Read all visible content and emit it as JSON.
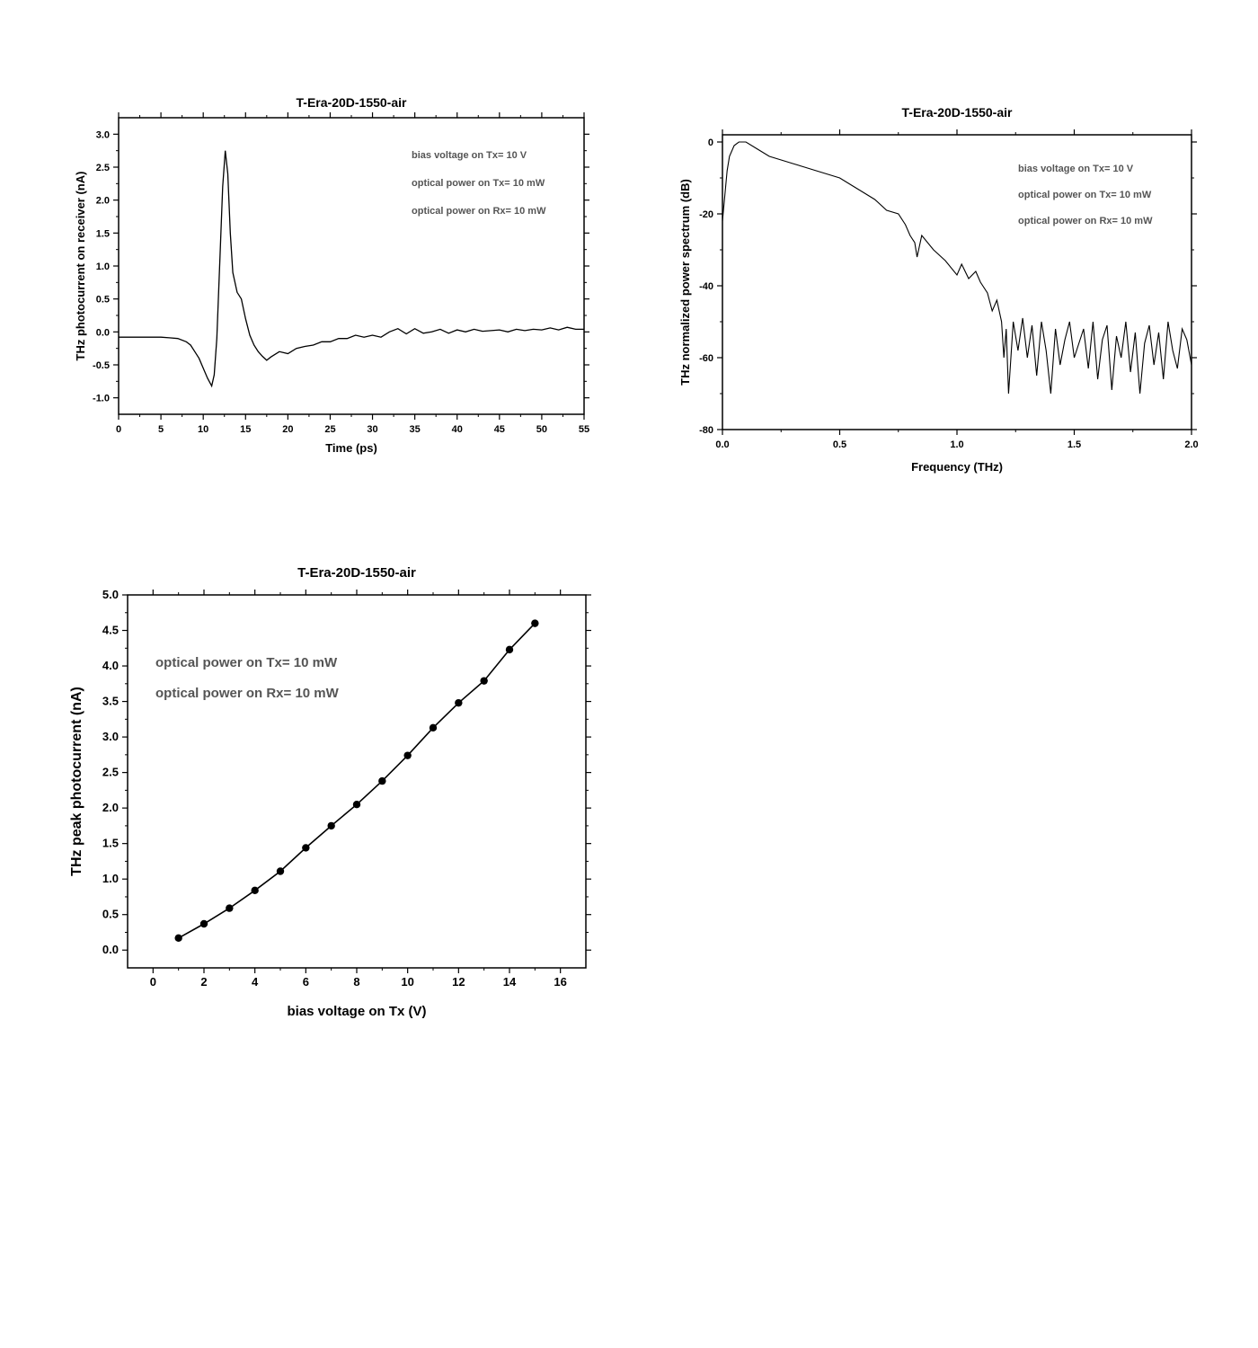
{
  "chart_data": [
    {
      "type": "line",
      "title": "T-Era-20D-1550-air",
      "xlabel": "Time (ps)",
      "ylabel": "THz photocurrent on receiver (nA)",
      "xlim": [
        0,
        55
      ],
      "ylim": [
        -1.25,
        3.25
      ],
      "xticks": [
        0,
        5,
        10,
        15,
        20,
        25,
        30,
        35,
        40,
        45,
        50,
        55
      ],
      "yticks": [
        -1.0,
        -0.5,
        0.0,
        0.5,
        1.0,
        1.5,
        2.0,
        2.5,
        3.0
      ],
      "annotations": [
        "bias voltage on Tx= 10 V",
        "optical power on Tx= 10 mW",
        "optical power on Rx= 10 mW"
      ],
      "grid": false,
      "x": [
        0,
        2,
        4,
        5,
        6,
        7,
        8,
        8.5,
        9,
        9.5,
        10,
        10.5,
        11,
        11.3,
        11.6,
        12,
        12.3,
        12.6,
        12.9,
        13.2,
        13.5,
        14,
        14.5,
        15,
        15.5,
        16,
        16.5,
        17,
        17.5,
        18,
        19,
        20,
        21,
        22,
        23,
        24,
        25,
        26,
        27,
        28,
        29,
        30,
        31,
        32,
        33,
        34,
        35,
        36,
        37,
        38,
        39,
        40,
        41,
        42,
        43,
        44,
        45,
        46,
        47,
        48,
        49,
        50,
        51,
        52,
        53,
        54,
        55
      ],
      "y": [
        -0.08,
        -0.08,
        -0.08,
        -0.08,
        -0.09,
        -0.1,
        -0.15,
        -0.2,
        -0.3,
        -0.4,
        -0.55,
        -0.7,
        -0.82,
        -0.65,
        -0.1,
        1.2,
        2.2,
        2.75,
        2.4,
        1.5,
        0.9,
        0.6,
        0.5,
        0.2,
        -0.05,
        -0.2,
        -0.3,
        -0.37,
        -0.43,
        -0.38,
        -0.3,
        -0.33,
        -0.25,
        -0.22,
        -0.2,
        -0.15,
        -0.15,
        -0.1,
        -0.1,
        -0.05,
        -0.08,
        -0.05,
        -0.08,
        0.0,
        0.05,
        -0.03,
        0.05,
        -0.02,
        0.0,
        0.04,
        -0.02,
        0.03,
        0.0,
        0.04,
        0.01,
        0.02,
        0.03,
        0.0,
        0.04,
        0.02,
        0.04,
        0.03,
        0.06,
        0.03,
        0.07,
        0.04,
        0.04
      ]
    },
    {
      "type": "line",
      "title": "T-Era-20D-1550-air",
      "xlabel": "Frequency (THz)",
      "ylabel": "THz normalized power spectrum (dB)",
      "xlim": [
        0,
        2.0
      ],
      "ylim": [
        -80,
        2
      ],
      "xticks": [
        0.0,
        0.5,
        1.0,
        1.5,
        2.0
      ],
      "yticks": [
        0,
        -20,
        -40,
        -60,
        -80
      ],
      "annotations": [
        "bias voltage on Tx= 10 V",
        "optical power on Tx= 10 mW",
        "optical power on Rx= 10 mW"
      ],
      "grid": false,
      "x": [
        0.0,
        0.01,
        0.02,
        0.03,
        0.05,
        0.07,
        0.1,
        0.15,
        0.2,
        0.25,
        0.3,
        0.35,
        0.4,
        0.45,
        0.5,
        0.55,
        0.6,
        0.65,
        0.7,
        0.75,
        0.78,
        0.8,
        0.82,
        0.83,
        0.85,
        0.9,
        0.95,
        1.0,
        1.02,
        1.05,
        1.08,
        1.1,
        1.13,
        1.15,
        1.17,
        1.19,
        1.2,
        1.21,
        1.22,
        1.24,
        1.26,
        1.28,
        1.3,
        1.32,
        1.34,
        1.36,
        1.38,
        1.4,
        1.42,
        1.44,
        1.46,
        1.48,
        1.5,
        1.52,
        1.54,
        1.56,
        1.58,
        1.6,
        1.62,
        1.64,
        1.66,
        1.68,
        1.7,
        1.72,
        1.74,
        1.76,
        1.78,
        1.8,
        1.82,
        1.84,
        1.86,
        1.88,
        1.9,
        1.92,
        1.94,
        1.96,
        1.98,
        2.0
      ],
      "y": [
        -22,
        -15,
        -8,
        -4,
        -1,
        0,
        0,
        -2,
        -4,
        -5,
        -6,
        -7,
        -8,
        -9,
        -10,
        -12,
        -14,
        -16,
        -19,
        -20,
        -23,
        -26,
        -28,
        -32,
        -26,
        -30,
        -33,
        -37,
        -34,
        -38,
        -36,
        -39,
        -42,
        -47,
        -44,
        -50,
        -60,
        -52,
        -70,
        -50,
        -58,
        -49,
        -60,
        -51,
        -65,
        -50,
        -58,
        -70,
        -52,
        -62,
        -55,
        -50,
        -60,
        -56,
        -52,
        -63,
        -50,
        -66,
        -55,
        -51,
        -69,
        -54,
        -60,
        -50,
        -64,
        -53,
        -70,
        -56,
        -51,
        -62,
        -53,
        -66,
        -50,
        -58,
        -63,
        -52,
        -55,
        -62
      ]
    },
    {
      "type": "line",
      "markers": true,
      "title": "T-Era-20D-1550-air",
      "xlabel": "bias voltage on Tx (V)",
      "ylabel": "THz peak photocurrent (nA)",
      "xlim": [
        -1,
        17
      ],
      "ylim": [
        -0.25,
        5.0
      ],
      "xticks": [
        0,
        2,
        4,
        6,
        8,
        10,
        12,
        14,
        16
      ],
      "yticks": [
        0.0,
        0.5,
        1.0,
        1.5,
        2.0,
        2.5,
        3.0,
        3.5,
        4.0,
        4.5,
        5.0
      ],
      "annotations": [
        "optical power on Tx= 10 mW",
        "optical power on Rx= 10 mW"
      ],
      "grid": false,
      "x": [
        1,
        2,
        3,
        4,
        5,
        6,
        7,
        8,
        9,
        10,
        11,
        12,
        13,
        14,
        15
      ],
      "y": [
        0.17,
        0.37,
        0.59,
        0.84,
        1.11,
        1.44,
        1.75,
        2.05,
        2.38,
        2.74,
        3.13,
        3.48,
        3.79,
        4.23,
        4.6
      ]
    }
  ]
}
